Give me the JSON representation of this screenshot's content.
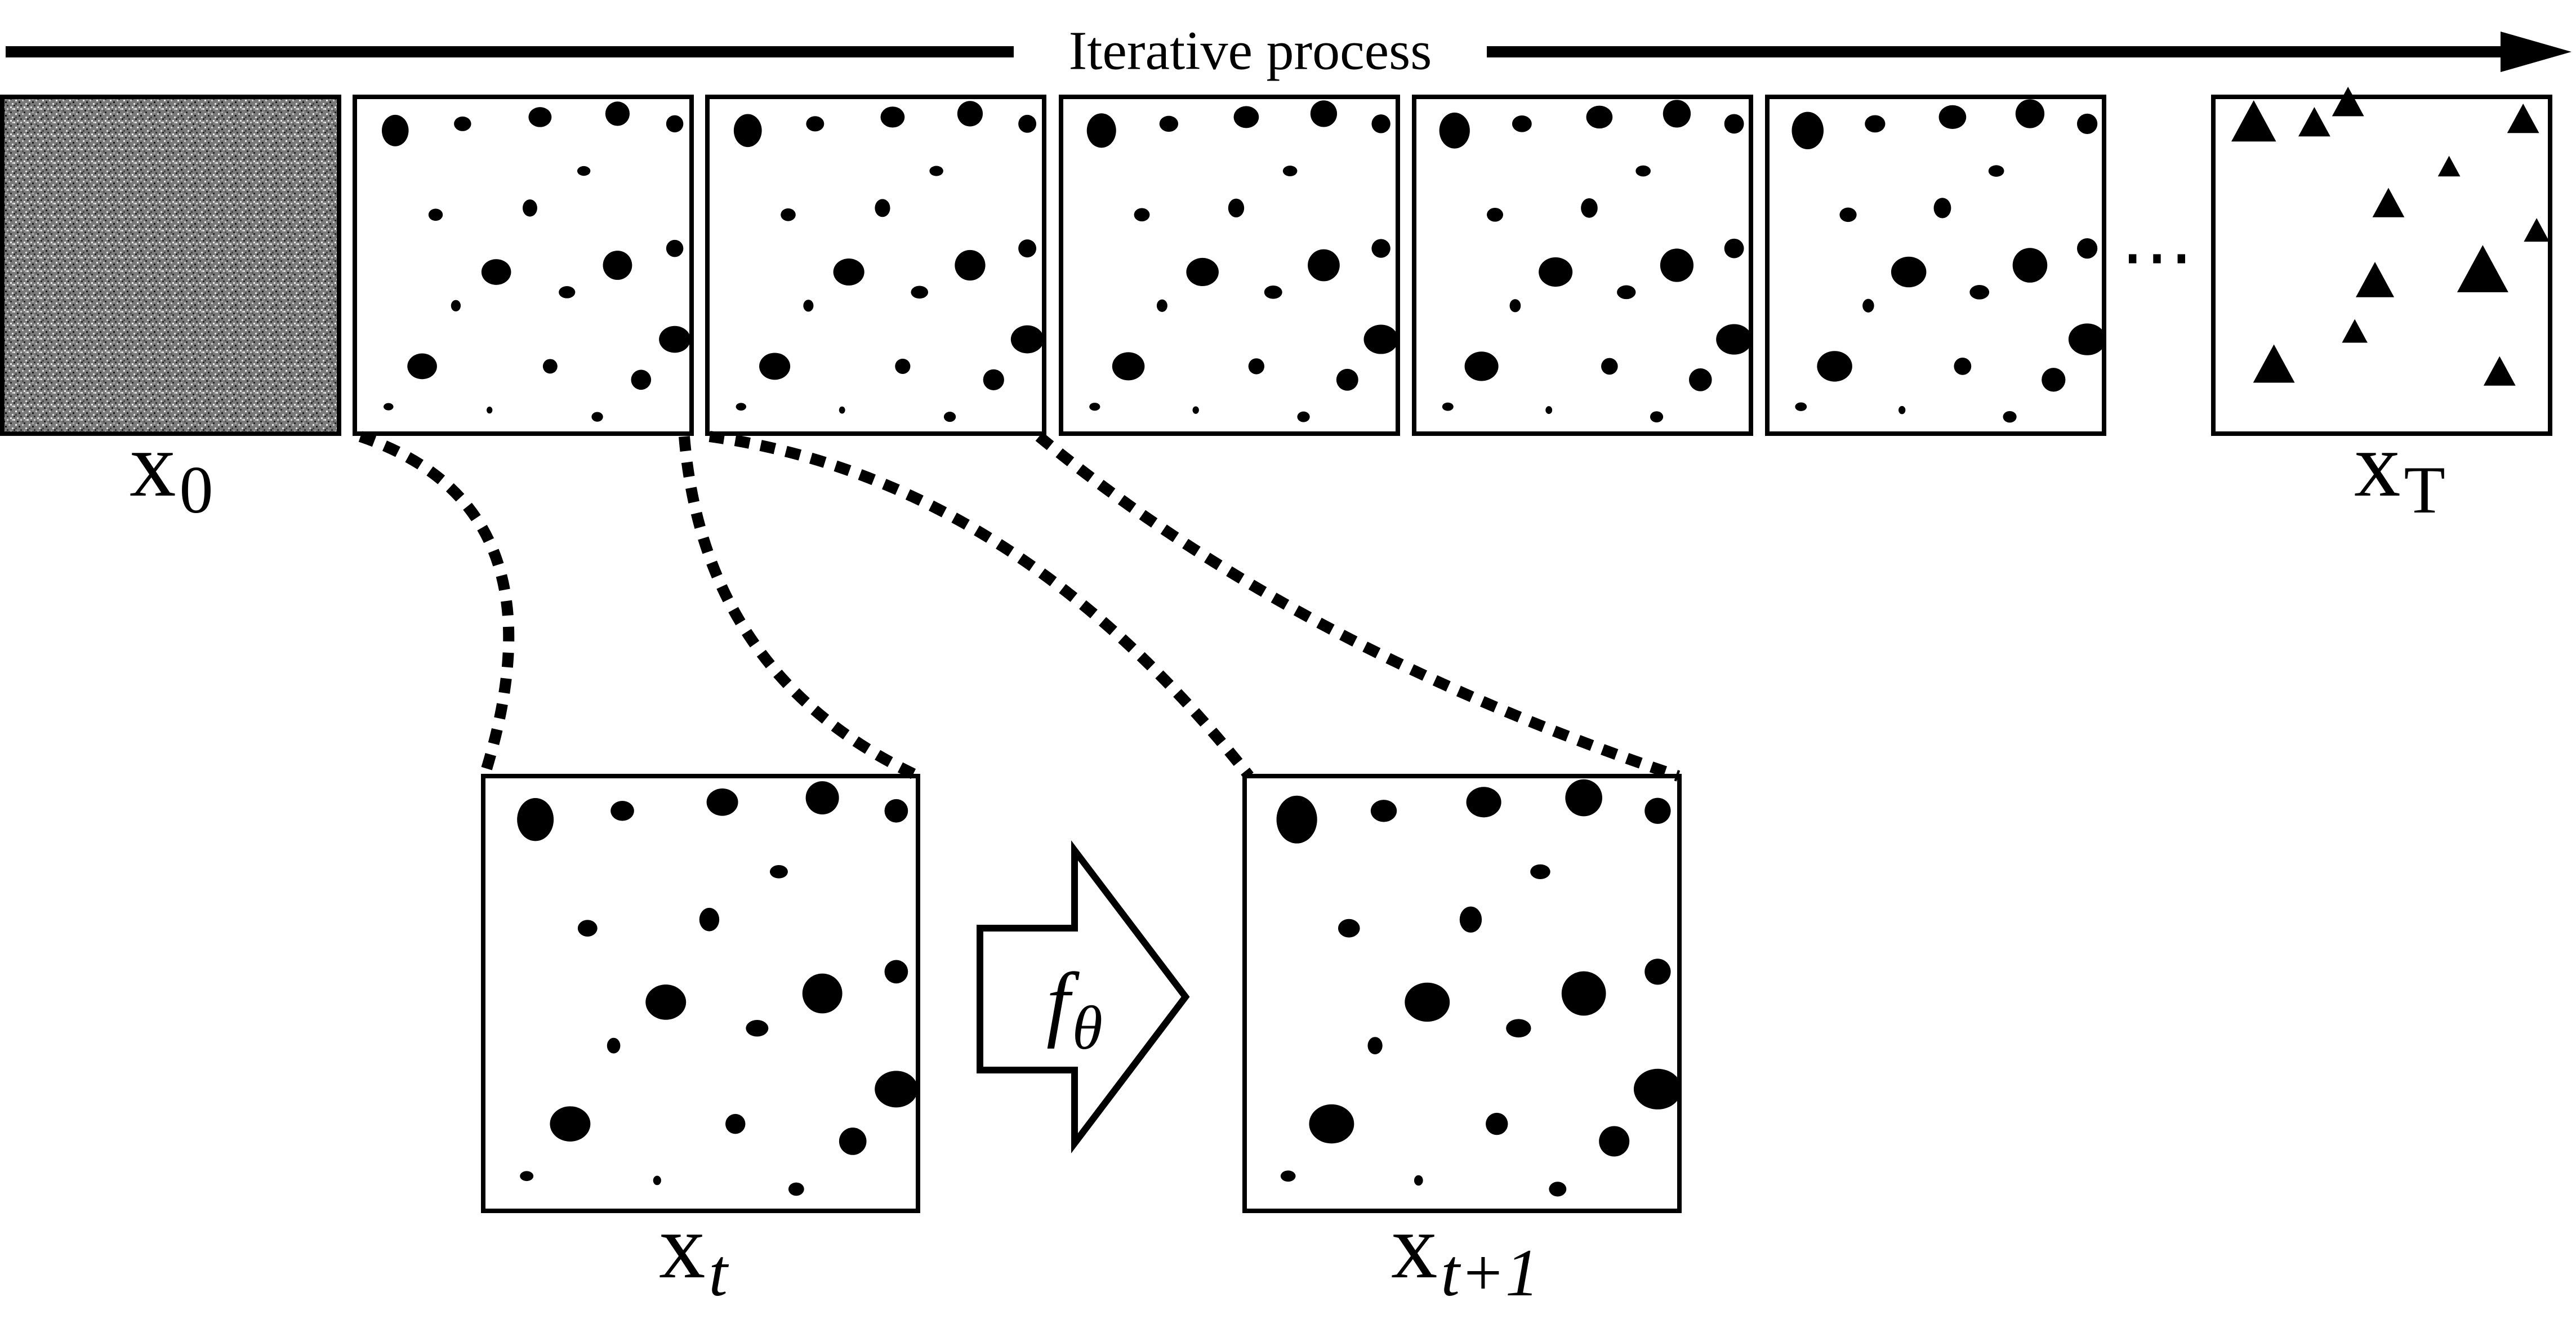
{
  "arrow": {
    "label": "Iterative process"
  },
  "ellipsis": "⋯",
  "labels": {
    "x0": {
      "base": "x",
      "sub": "0",
      "sub_italic": false
    },
    "xT": {
      "base": "x",
      "sub": "T",
      "sub_italic": false
    },
    "xt": {
      "base": "x",
      "sub": "t",
      "sub_italic": true
    },
    "xt1": {
      "base": "x",
      "sub": "t+1",
      "sub_italic": true
    }
  },
  "operator": {
    "base": "f",
    "sub": "θ"
  },
  "colors": {
    "ink": "#000000",
    "noise_light": "#d9d9d9",
    "noise_dark": "#1a1a1a",
    "background": "#ffffff"
  }
}
